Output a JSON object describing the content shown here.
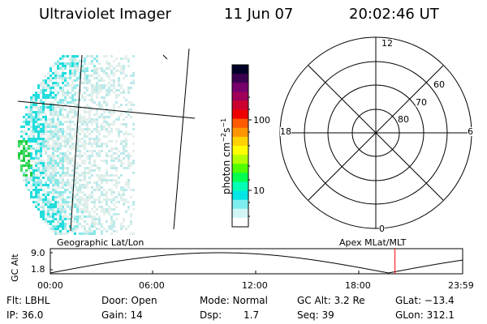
{
  "header": {
    "title": "Ultraviolet Imager",
    "date": "11 Jun 07",
    "time": "20:02:46 UT"
  },
  "colorbar": {
    "unit_text": "photon cm",
    "unit_exp1": "−2",
    "unit_s": "s",
    "unit_exp2": "−1",
    "tick_100": "100",
    "tick_10": "10",
    "colors": [
      "#000028",
      "#3c0050",
      "#78006e",
      "#a0005a",
      "#cc0030",
      "#ee0000",
      "#ff5a00",
      "#ff9600",
      "#ffd200",
      "#ffff00",
      "#b4ff00",
      "#50ff00",
      "#00ff50",
      "#00ffb4",
      "#00e6e6",
      "#7feeee",
      "#d2f5f5",
      "#ffffff"
    ]
  },
  "polar": {
    "labels": {
      "top": "12",
      "left": "18",
      "right": "6",
      "bottom": "0"
    },
    "rings": {
      "r60": "60",
      "r70": "70",
      "r80": "80"
    }
  },
  "timeline": {
    "left_label": "Geographic Lat/Lon",
    "right_label": "Apex MLat/MLT",
    "y_label": "GC Alt",
    "y_top": "9.0",
    "y_bottom": "1.8",
    "x_ticks": [
      "00:00",
      "06:00",
      "12:00",
      "18:00",
      "23:59"
    ],
    "marker_time": "20:02:46"
  },
  "info": {
    "flt": "Flt: LBHL",
    "ip": "IP: 36.0",
    "door": "Door: Open",
    "gain": "Gain: 14",
    "mode": "Mode: Normal",
    "dsp_label": "Dsp:",
    "dsp_value": "1.7",
    "gcalt": "GC Alt: 3.2 Re",
    "seq": "Seq: 39",
    "glat": "GLat: −13.4",
    "glon": "GLon: 312.1"
  }
}
